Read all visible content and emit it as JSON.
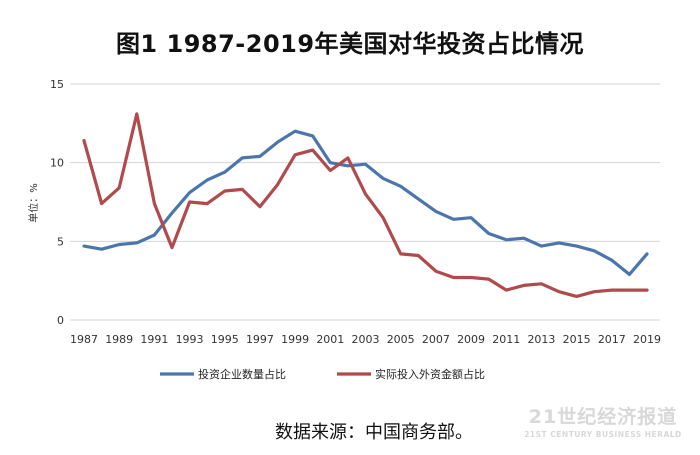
{
  "title": "图1 1987-2019年美国对华投资占比情况",
  "source": "数据来源：中国商务部。",
  "watermark": {
    "line1": "21世纪经济报道",
    "line2": "21ST CENTURY BUSINESS HERALD"
  },
  "chart_data": {
    "type": "line",
    "title": "图1 1987-2019年美国对华投资占比情况",
    "xlabel": "",
    "ylabel": "单位：%",
    "ylim": [
      0,
      15
    ],
    "yticks": [
      0,
      5,
      10,
      15
    ],
    "grid": "horizontal",
    "legend": "bottom",
    "x": [
      1987,
      1988,
      1989,
      1990,
      1991,
      1992,
      1993,
      1994,
      1995,
      1996,
      1997,
      1998,
      1999,
      2000,
      2001,
      2002,
      2003,
      2004,
      2005,
      2006,
      2007,
      2008,
      2009,
      2010,
      2011,
      2012,
      2013,
      2014,
      2015,
      2016,
      2017,
      2018,
      2019
    ],
    "xticks": [
      "1987",
      "1989",
      "1991",
      "1993",
      "1995",
      "1997",
      "1999",
      "2001",
      "2003",
      "2005",
      "2007",
      "2009",
      "2011",
      "2013",
      "2015",
      "2017",
      "2019"
    ],
    "series": [
      {
        "name": "投资企业数量占比",
        "color": "#4a76ad",
        "values": [
          4.7,
          4.5,
          4.8,
          4.9,
          5.4,
          6.8,
          8.1,
          8.9,
          9.4,
          10.3,
          10.4,
          11.3,
          12.0,
          11.7,
          10.0,
          9.8,
          9.9,
          9.0,
          8.5,
          7.7,
          6.9,
          6.4,
          6.5,
          5.5,
          5.1,
          5.2,
          4.7,
          4.9,
          4.7,
          4.4,
          3.8,
          2.9,
          4.2
        ]
      },
      {
        "name": "实际投入外资金额占比",
        "color": "#b04a4c",
        "values": [
          11.4,
          7.4,
          8.4,
          13.1,
          7.4,
          4.6,
          7.5,
          7.4,
          8.2,
          8.3,
          7.2,
          8.6,
          10.5,
          10.8,
          9.5,
          10.3,
          8.0,
          6.5,
          4.2,
          4.1,
          3.1,
          2.7,
          2.7,
          2.6,
          1.9,
          2.2,
          2.3,
          1.8,
          1.5,
          1.8,
          1.9,
          1.9,
          1.9
        ]
      }
    ]
  }
}
